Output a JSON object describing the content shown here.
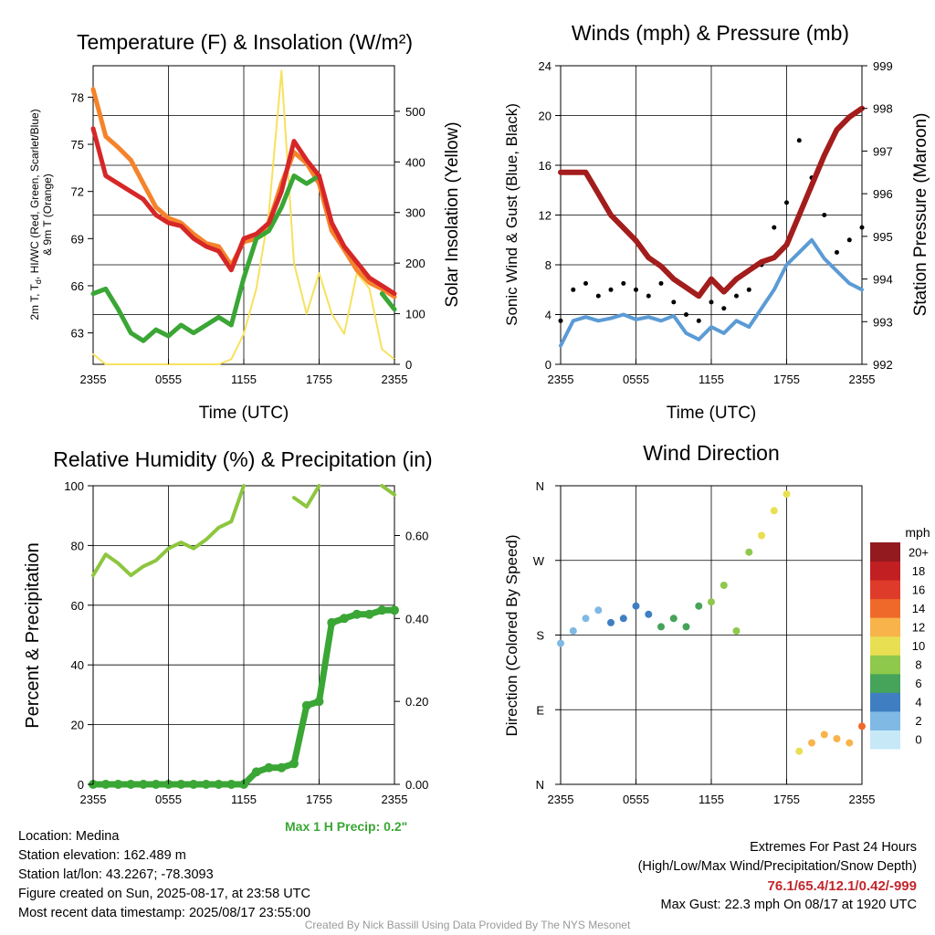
{
  "info": {
    "location": "Location: Medina",
    "elevation": "Station elevation: 162.489 m",
    "latlon": "Station lat/lon: 43.2267; -78.3093",
    "created": "Figure created on Sun, 2025-08-17, at 23:58 UTC",
    "recent": "Most recent data timestamp: 2025/08/17 23:55:00"
  },
  "extremes": {
    "title": "Extremes For Past 24 Hours",
    "subtitle": "(High/Low/Max Wind/Precipitation/Snow Depth)",
    "values": "76.1/65.4/12.1/0.42/-999",
    "gust": "Max Gust: 22.3 mph On 08/17 at 1920 UTC"
  },
  "credit": "Created By Nick Bassill Using Data Provided By The NYS Mesonet",
  "max_precip": "Max 1 H Precip: 0.2\"",
  "chart_data": [
    {
      "type": "line",
      "title": "Temperature (F) & Insolation (W/m²)",
      "xlabel": "Time (UTC)",
      "ylabel": "2m T, Td, HI/WC (Red, Green, Scarlet/Blue) & 9m T (Orange)",
      "ylabel_line1": "2m T, T",
      "ylabel_sub": "d",
      "ylabel_rest": ", HI/WC (Red, Green, Scarlet/Blue)",
      "ylabel_line2": "& 9m T (Orange)",
      "y2label": "Solar Insolation (Yellow)",
      "xticks": [
        "2355",
        "0555",
        "1155",
        "1755",
        "2355"
      ],
      "x": [
        0,
        1,
        2,
        3,
        4,
        5,
        6,
        7,
        8,
        9,
        10,
        11,
        12,
        13,
        14,
        15,
        16,
        17,
        18,
        19,
        20,
        21,
        22,
        23,
        24
      ],
      "ylim": [
        61,
        80
      ],
      "yticks": [
        63,
        66,
        69,
        72,
        75,
        78
      ],
      "y2lim": [
        0,
        590
      ],
      "y2ticks": [
        0,
        100,
        200,
        300,
        400,
        500
      ],
      "series": [
        {
          "name": "2m T",
          "color": "#d62728",
          "axis": "left",
          "values": [
            76.0,
            73.0,
            72.5,
            72.0,
            71.5,
            70.5,
            70.0,
            69.8,
            69.0,
            68.5,
            68.2,
            67.0,
            69.0,
            69.3,
            70.0,
            72.0,
            75.2,
            74.0,
            73.0,
            70.0,
            68.5,
            67.5,
            66.5,
            66.0,
            65.5
          ]
        },
        {
          "name": "9m T",
          "color": "#f5832b",
          "axis": "left",
          "values": [
            78.5,
            75.5,
            74.8,
            74.0,
            72.5,
            71.0,
            70.3,
            70.0,
            69.3,
            68.7,
            68.5,
            67.3,
            68.8,
            69.0,
            70.0,
            72.5,
            74.5,
            73.8,
            72.5,
            69.5,
            68.3,
            67.0,
            66.2,
            65.8,
            65.3
          ]
        },
        {
          "name": "2m Td",
          "color": "#3aa635",
          "axis": "left",
          "values": [
            65.5,
            65.8,
            64.5,
            63.0,
            62.5,
            63.2,
            62.8,
            63.5,
            63.0,
            63.5,
            64.0,
            63.5,
            66.5,
            69.0,
            69.5,
            71.0,
            73.0,
            72.5,
            73.0,
            null,
            null,
            null,
            null,
            65.5,
            64.5
          ]
        },
        {
          "name": "Solar",
          "color": "#f7e15e",
          "axis": "right",
          "values": [
            20,
            0,
            0,
            0,
            0,
            0,
            0,
            0,
            0,
            0,
            0,
            10,
            60,
            150,
            300,
            580,
            200,
            100,
            180,
            100,
            60,
            180,
            150,
            30,
            10
          ]
        }
      ]
    },
    {
      "type": "scatter",
      "title": "Winds (mph) & Pressure (mb)",
      "xlabel": "Time (UTC)",
      "ylabel": "Sonic Wind & Gust (Blue, Black)",
      "y2label": "Station Pressure (Maroon)",
      "xticks": [
        "2355",
        "0555",
        "1155",
        "1755",
        "2355"
      ],
      "x": [
        0,
        1,
        2,
        3,
        4,
        5,
        6,
        7,
        8,
        9,
        10,
        11,
        12,
        13,
        14,
        15,
        16,
        17,
        18,
        19,
        20,
        21,
        22,
        23,
        24
      ],
      "ylim": [
        0,
        24
      ],
      "yticks": [
        0,
        4,
        8,
        12,
        16,
        20,
        24
      ],
      "y2lim": [
        992,
        999
      ],
      "y2ticks": [
        992,
        993,
        994,
        995,
        996,
        997,
        998,
        999
      ],
      "series": [
        {
          "name": "Sonic Wind",
          "color": "#5b9bd5",
          "values": [
            1.5,
            3.5,
            3.8,
            3.5,
            3.7,
            4.0,
            3.6,
            3.8,
            3.5,
            3.9,
            2.5,
            2.0,
            3.0,
            2.5,
            3.5,
            3.0,
            4.5,
            6.0,
            8.0,
            9.0,
            10.0,
            8.5,
            7.5,
            6.5,
            6.0
          ]
        },
        {
          "name": "Gust",
          "color": "#000000",
          "values": [
            3.5,
            6.0,
            6.5,
            5.5,
            6.0,
            6.5,
            6.0,
            5.5,
            6.5,
            5.0,
            4.0,
            3.5,
            5.0,
            4.5,
            5.5,
            6.0,
            8.0,
            11.0,
            13.0,
            18.0,
            15.0,
            12.0,
            9.0,
            10.0,
            11.0
          ]
        },
        {
          "name": "Pressure",
          "color": "#a31d1d",
          "axis": "right",
          "values": [
            996.5,
            996.5,
            996.5,
            996.0,
            995.5,
            995.2,
            994.9,
            994.5,
            994.3,
            994.0,
            993.8,
            993.6,
            994.0,
            993.7,
            994.0,
            994.2,
            994.4,
            994.5,
            994.8,
            995.5,
            996.2,
            996.9,
            997.5,
            997.8,
            998.0
          ]
        }
      ]
    },
    {
      "type": "line",
      "title": "Relative Humidity (%) & Precipitation (in)",
      "xlabel": "",
      "ylabel": "Percent & Precipitation",
      "xticks": [
        "2355",
        "0555",
        "1155",
        "1755",
        "2355"
      ],
      "x": [
        0,
        1,
        2,
        3,
        4,
        5,
        6,
        7,
        8,
        9,
        10,
        11,
        12,
        13,
        14,
        15,
        16,
        17,
        18,
        19,
        20,
        21,
        22,
        23,
        24
      ],
      "ylim": [
        0,
        100
      ],
      "yticks": [
        0,
        20,
        40,
        60,
        80,
        100
      ],
      "y2lim": [
        0,
        0.72
      ],
      "y2ticks": [
        "0.00",
        "0.20",
        "0.40",
        "0.60"
      ],
      "series": [
        {
          "name": "RH",
          "color": "#8dc63f",
          "values": [
            70,
            77,
            74,
            70,
            73,
            75,
            79,
            81,
            79,
            82,
            86,
            88,
            100,
            null,
            null,
            null,
            96,
            93,
            100,
            null,
            null,
            null,
            null,
            100,
            97
          ]
        },
        {
          "name": "Precip",
          "color": "#3aa635",
          "axis": "right",
          "values": [
            0,
            0,
            0,
            0,
            0,
            0,
            0,
            0,
            0,
            0,
            0,
            0,
            0,
            0.03,
            0.04,
            0.04,
            0.05,
            0.19,
            0.2,
            0.39,
            0.4,
            0.41,
            0.41,
            0.42,
            0.42
          ]
        }
      ]
    },
    {
      "type": "scatter",
      "title": "Wind Direction",
      "xlabel": "",
      "ylabel": "Direction (Colored By Speed)",
      "xticks": [
        "2355",
        "0555",
        "1155",
        "1755",
        "2355"
      ],
      "yticks": [
        "N",
        "E",
        "S",
        "W",
        "N"
      ],
      "ylim": [
        0,
        360
      ],
      "x": [
        0,
        1,
        2,
        3,
        4,
        5,
        6,
        7,
        8,
        9,
        10,
        11,
        12,
        13,
        14,
        15,
        16,
        17,
        18,
        19,
        20,
        21,
        22,
        23,
        24
      ],
      "values": [
        170,
        185,
        200,
        210,
        195,
        200,
        215,
        205,
        190,
        200,
        190,
        215,
        220,
        240,
        185,
        280,
        300,
        330,
        350,
        40,
        50,
        60,
        55,
        50,
        70
      ],
      "colorbar": {
        "title": "mph",
        "labels": [
          "0",
          "2",
          "4",
          "6",
          "8",
          "10",
          "12",
          "14",
          "16",
          "18",
          "20+"
        ],
        "colors": [
          "#c6e8f7",
          "#7fb9e4",
          "#3f7fc1",
          "#45a35a",
          "#8ec94b",
          "#e9df52",
          "#f8b34b",
          "#ef6a2a",
          "#df3b2a",
          "#c21f23",
          "#931a1f"
        ]
      }
    }
  ]
}
